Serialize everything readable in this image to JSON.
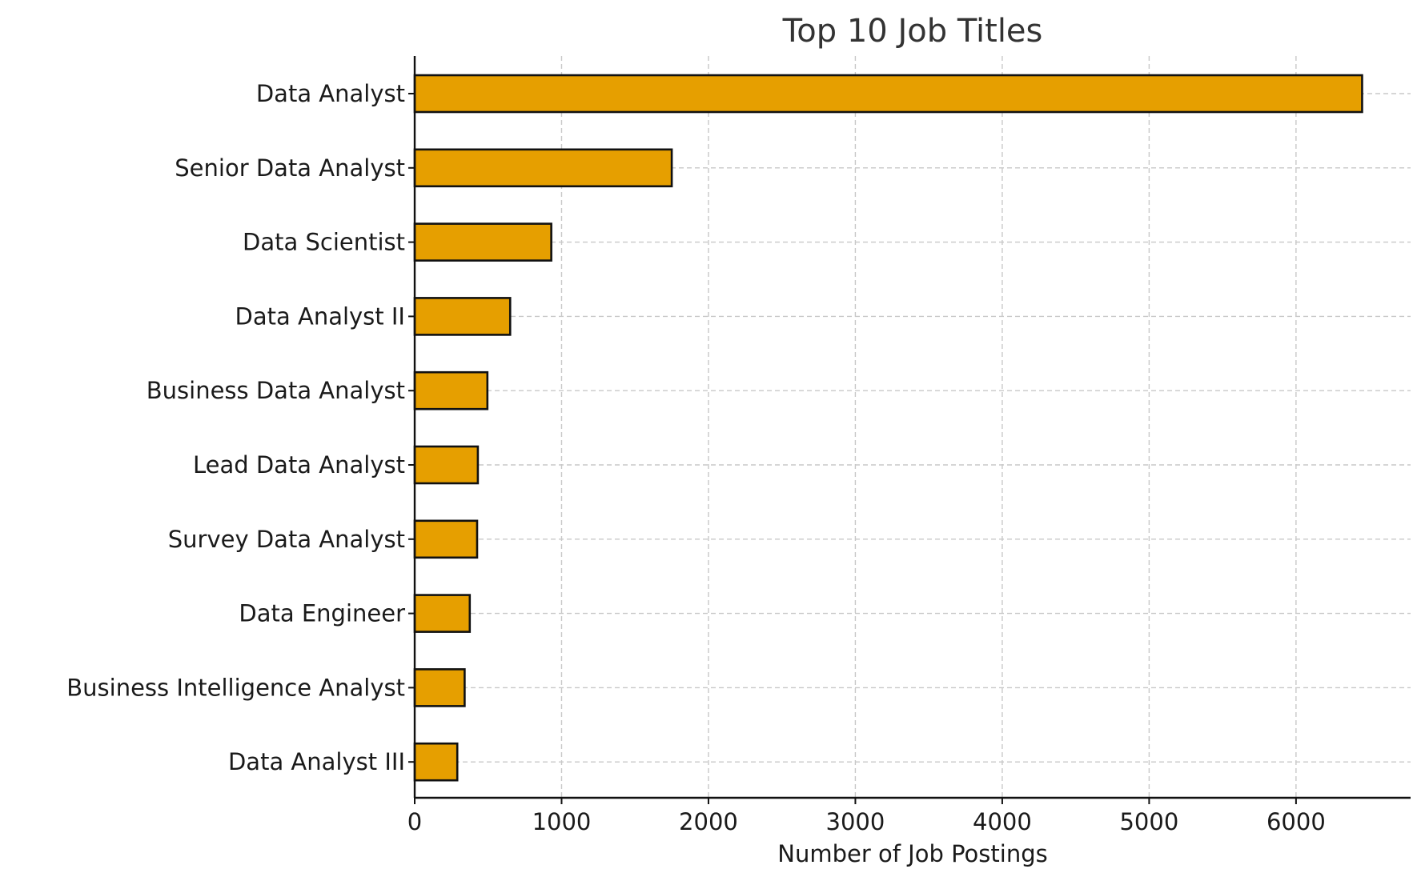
{
  "chart_data": {
    "type": "bar",
    "orientation": "horizontal",
    "title": "Top 10 Job Titles",
    "xlabel": "Number of Job Postings",
    "ylabel": "",
    "categories": [
      "Data Analyst",
      "Senior Data Analyst",
      "Data Scientist",
      "Data Analyst II",
      "Business Data Analyst",
      "Lead Data Analyst",
      "Survey Data Analyst",
      "Data Engineer",
      "Business Intelligence Analyst",
      "Data Analyst III"
    ],
    "values": [
      6450,
      1750,
      930,
      650,
      495,
      430,
      425,
      375,
      340,
      290
    ],
    "xlim": [
      0,
      6780
    ],
    "xticks": [
      0,
      1000,
      2000,
      3000,
      4000,
      5000,
      6000
    ],
    "xtick_labels": [
      "0",
      "1000",
      "2000",
      "3000",
      "4000",
      "5000",
      "6000"
    ],
    "grid": true,
    "bar_color": "#E69F00",
    "edge_color": "#111111"
  }
}
